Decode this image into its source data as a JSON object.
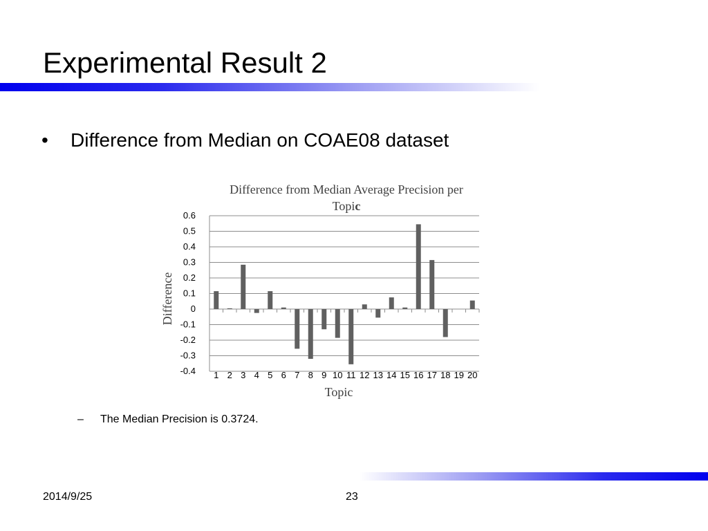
{
  "slide": {
    "title": "Experimental Result 2",
    "bullet_symbol": "•",
    "bullet_text": "Difference from Median on COAE08 dataset",
    "sub_dash": "–",
    "sub_text": "The Median Precision is 0.3724."
  },
  "footer": {
    "date": "2014/9/25",
    "page": "23"
  },
  "colors": {
    "accent_blue": "#0000ee",
    "bar": "#606060",
    "grid": "#8c8c8c"
  },
  "chart_data": {
    "type": "bar",
    "title_line1": "Difference from Median Average Precision per",
    "title_line2_start": "Topi",
    "title_line2_bold": "c",
    "xlabel": "Topic",
    "ylabel": "Difference",
    "ylim": [
      -0.4,
      0.6
    ],
    "yticks": [
      "0.6",
      "0.5",
      "0.4",
      "0.3",
      "0.2",
      "0.1",
      "0",
      "-0.1",
      "-0.2",
      "-0.3",
      "-0.4"
    ],
    "grid": true,
    "categories": [
      "1",
      "2",
      "3",
      "4",
      "5",
      "6",
      "7",
      "8",
      "9",
      "10",
      "11",
      "12",
      "13",
      "14",
      "15",
      "16",
      "17",
      "18",
      "19",
      "20"
    ],
    "values": [
      0.115,
      0.005,
      0.285,
      -0.025,
      0.115,
      0.01,
      -0.255,
      -0.32,
      -0.13,
      -0.185,
      -0.355,
      0.03,
      -0.055,
      0.075,
      0.01,
      0.545,
      0.315,
      -0.18,
      0.0,
      0.055
    ]
  }
}
